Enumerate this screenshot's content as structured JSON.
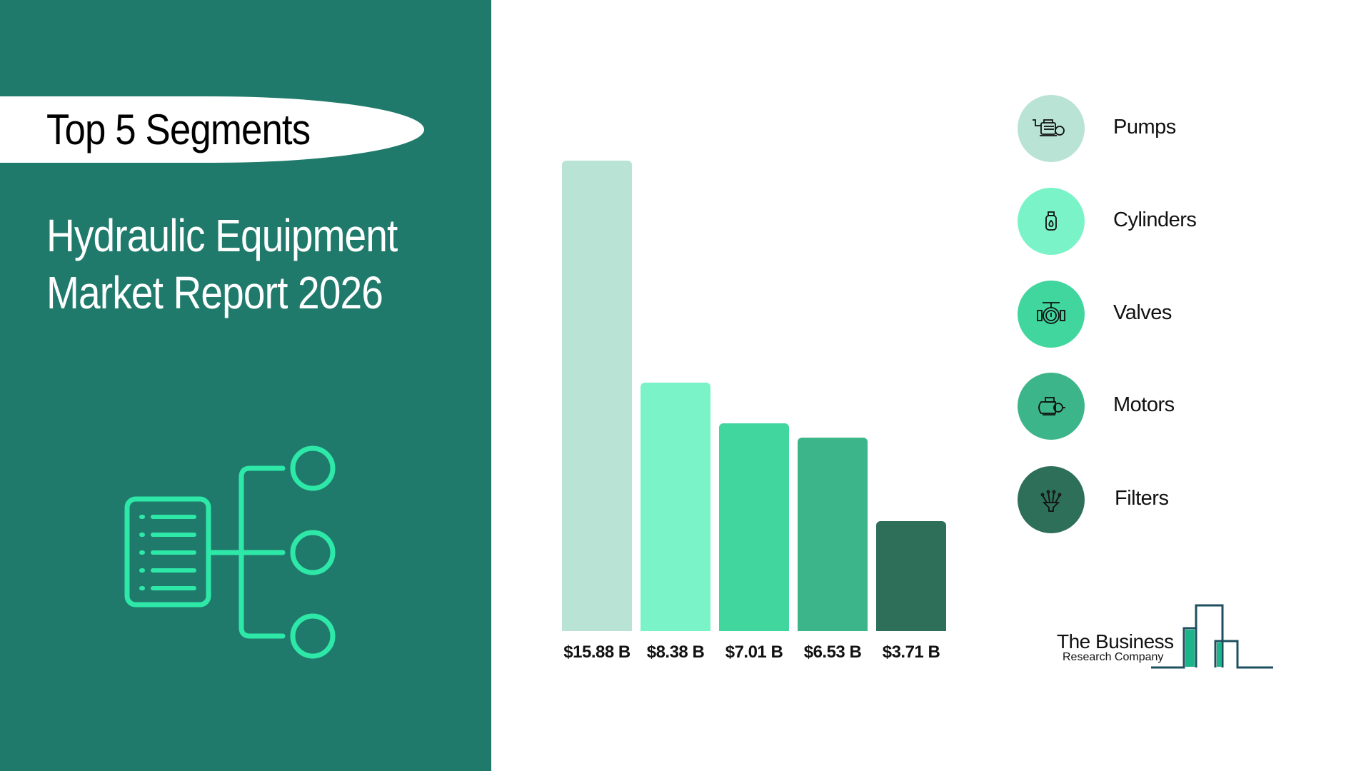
{
  "header": {
    "badge": "Top 5 Segments",
    "title_line1": "Hydraulic Equipment",
    "title_line2": "Market Report 2026"
  },
  "chart_data": {
    "type": "bar",
    "categories": [
      "Pumps",
      "Cylinders",
      "Valves",
      "Motors",
      "Filters"
    ],
    "values": [
      15.88,
      8.38,
      7.01,
      6.53,
      3.71
    ],
    "value_labels": [
      "$15.88 B",
      "$8.38 B",
      "$7.01 B",
      "$6.53 B",
      "$3.71 B"
    ],
    "colors": [
      "#b9e3d4",
      "#7bf3c8",
      "#40d69e",
      "#3db58a",
      "#2e6f5a"
    ],
    "unit": "B",
    "grid": false,
    "legend": "right"
  },
  "legend": [
    {
      "label": "Pumps",
      "icon": "pump-icon",
      "color": "#b9e3d4"
    },
    {
      "label": "Cylinders",
      "icon": "gas-cylinder-icon",
      "color": "#7bf3c8"
    },
    {
      "label": "Valves",
      "icon": "valve-icon",
      "color": "#40d69e"
    },
    {
      "label": "Motors",
      "icon": "motor-icon",
      "color": "#3db58a"
    },
    {
      "label": "Filters",
      "icon": "filter-funnel-icon",
      "color": "#2e6f5a"
    }
  ],
  "logo": {
    "line1": "The Business",
    "line2": "Research Company"
  },
  "colors": {
    "panel": "#1f7a6b",
    "accent": "#2ee8a8"
  }
}
